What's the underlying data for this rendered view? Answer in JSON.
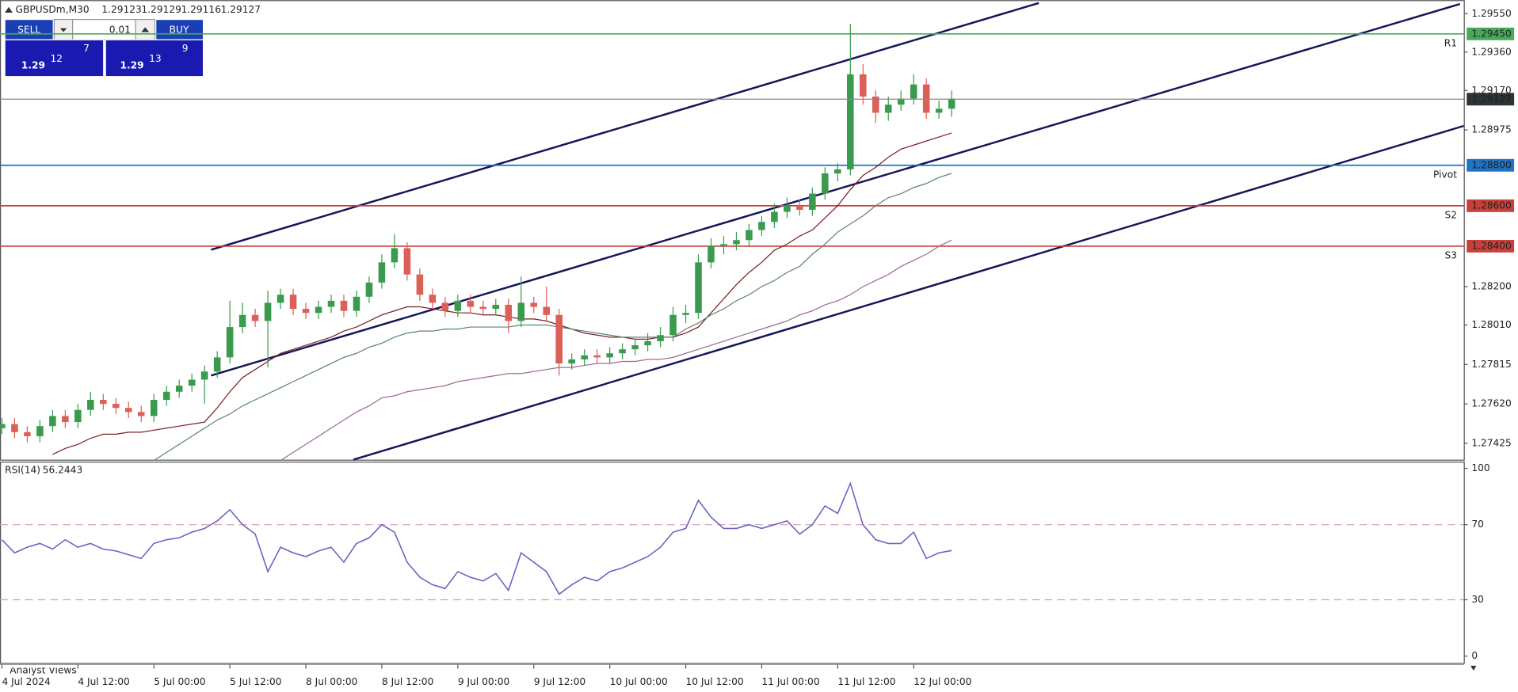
{
  "header": {
    "symbol": "GBPUSDm,M30",
    "prices": [
      "1.29123",
      "1.29129",
      "1.29116",
      "1.29127"
    ]
  },
  "trade_panel": {
    "sell": "SELL",
    "buy": "BUY",
    "lot": "0.01",
    "sell_price": {
      "big": "1.29",
      "main": "12",
      "pip": "7"
    },
    "buy_price": {
      "big": "1.29",
      "main": "13",
      "pip": "9"
    }
  },
  "footer_tab": "Analyst Views",
  "chart_data": [
    {
      "type": "candlestick",
      "up_color": "#3a9b4f",
      "down_color": "#dc5f58",
      "categories": [
        "4 Jul 2024",
        null,
        null,
        null,
        null,
        null,
        "4 Jul 12:00",
        null,
        null,
        null,
        null,
        null,
        "5 Jul 00:00",
        null,
        null,
        null,
        null,
        null,
        "5 Jul 12:00",
        null,
        null,
        null,
        null,
        null,
        "8 Jul 00:00",
        null,
        null,
        null,
        null,
        null,
        "8 Jul 12:00",
        null,
        null,
        null,
        null,
        null,
        "9 Jul 00:00",
        null,
        null,
        null,
        null,
        null,
        "9 Jul 12:00",
        null,
        null,
        null,
        null,
        null,
        "10 Jul 00:00",
        null,
        null,
        null,
        null,
        null,
        "10 Jul 12:00",
        null,
        null,
        null,
        null,
        null,
        "11 Jul 00:00",
        null,
        null,
        null,
        null,
        null,
        "11 Jul 12:00",
        null,
        null,
        null,
        null,
        null,
        "12 Jul 00:00",
        null,
        null,
        null
      ],
      "open": [
        1.275,
        1.2752,
        1.2748,
        1.2746,
        1.2751,
        1.2756,
        1.2753,
        1.2759,
        1.2764,
        1.2762,
        1.276,
        1.2758,
        1.2756,
        1.2764,
        1.2768,
        1.2771,
        1.2774,
        1.2778,
        1.2785,
        1.28,
        1.2806,
        1.2803,
        1.2812,
        1.2816,
        1.2809,
        1.2807,
        1.281,
        1.2813,
        1.2808,
        1.2815,
        1.2822,
        1.2832,
        1.2839,
        1.2826,
        1.2816,
        1.2812,
        1.2808,
        1.2813,
        1.281,
        1.2809,
        1.2811,
        1.2803,
        1.2812,
        1.281,
        1.2806,
        1.2782,
        1.2784,
        1.2786,
        1.2785,
        1.2787,
        1.2789,
        1.2791,
        1.2793,
        1.2796,
        1.2806,
        1.2807,
        1.2832,
        1.284,
        1.2841,
        1.2843,
        1.2848,
        1.2852,
        1.2857,
        1.286,
        1.2858,
        1.2866,
        1.2876,
        1.2878,
        1.2925,
        1.2914,
        1.2906,
        1.291,
        1.2913,
        1.292,
        1.2906,
        1.2908
      ],
      "high": [
        1.2755,
        1.2755,
        1.2751,
        1.2754,
        1.2759,
        1.2759,
        1.2762,
        1.2768,
        1.2767,
        1.2765,
        1.2763,
        1.2761,
        1.2767,
        1.2771,
        1.2774,
        1.2777,
        1.2781,
        1.2788,
        1.2813,
        1.2812,
        1.2809,
        1.2818,
        1.2819,
        1.2819,
        1.2812,
        1.2813,
        1.2816,
        1.2816,
        1.2818,
        1.2825,
        1.2836,
        1.2846,
        1.2842,
        1.2829,
        1.2819,
        1.2815,
        1.2816,
        1.2816,
        1.2813,
        1.2814,
        1.2814,
        1.2825,
        1.2815,
        1.282,
        1.2809,
        1.2787,
        1.2789,
        1.2789,
        1.279,
        1.2792,
        1.2794,
        1.2797,
        1.28,
        1.281,
        1.2811,
        1.2836,
        1.2844,
        1.2845,
        1.2847,
        1.2851,
        1.2855,
        1.2861,
        1.2864,
        1.2863,
        1.2869,
        1.2879,
        1.2881,
        1.295,
        1.293,
        1.2917,
        1.2914,
        1.2917,
        1.2925,
        1.2923,
        1.2912,
        1.2917
      ],
      "low": [
        1.2747,
        1.2745,
        1.2743,
        1.2743,
        1.2748,
        1.275,
        1.275,
        1.2756,
        1.2759,
        1.2757,
        1.2755,
        1.2753,
        1.2753,
        1.2761,
        1.2765,
        1.2768,
        1.2762,
        1.2775,
        1.2782,
        1.2797,
        1.28,
        1.278,
        1.2809,
        1.2806,
        1.2804,
        1.2804,
        1.2807,
        1.2805,
        1.2805,
        1.2812,
        1.2819,
        1.2829,
        1.2823,
        1.2813,
        1.2809,
        1.2805,
        1.2805,
        1.2807,
        1.2806,
        1.2806,
        1.2797,
        1.28,
        1.2807,
        1.2803,
        1.2776,
        1.2779,
        1.2781,
        1.2782,
        1.2782,
        1.2784,
        1.2786,
        1.2788,
        1.279,
        1.2793,
        1.2802,
        1.2804,
        1.2829,
        1.2836,
        1.2838,
        1.284,
        1.2845,
        1.2849,
        1.2854,
        1.2855,
        1.2855,
        1.2863,
        1.2872,
        1.2875,
        1.291,
        1.2901,
        1.2902,
        1.2907,
        1.291,
        1.2903,
        1.2903,
        1.2904
      ],
      "close": [
        1.2752,
        1.2748,
        1.2746,
        1.2751,
        1.2756,
        1.2753,
        1.2759,
        1.2764,
        1.2762,
        1.276,
        1.2758,
        1.2756,
        1.2764,
        1.2768,
        1.2771,
        1.2774,
        1.2778,
        1.2785,
        1.28,
        1.2806,
        1.2803,
        1.2812,
        1.2816,
        1.2809,
        1.2807,
        1.281,
        1.2813,
        1.2808,
        1.2815,
        1.2822,
        1.2832,
        1.2839,
        1.2826,
        1.2816,
        1.2812,
        1.2808,
        1.2813,
        1.281,
        1.2809,
        1.2811,
        1.2803,
        1.2812,
        1.281,
        1.2806,
        1.2782,
        1.2784,
        1.2786,
        1.2785,
        1.2787,
        1.2789,
        1.2791,
        1.2793,
        1.2796,
        1.2806,
        1.2807,
        1.2832,
        1.284,
        1.2841,
        1.2843,
        1.2848,
        1.2852,
        1.2857,
        1.286,
        1.2858,
        1.2866,
        1.2876,
        1.2878,
        1.2925,
        1.2914,
        1.2906,
        1.291,
        1.2913,
        1.292,
        1.2906,
        1.2908,
        1.2913
      ],
      "overlays": [
        {
          "color": "#7a1f24",
          "values": [
            null,
            null,
            null,
            null,
            1.2737,
            1.274,
            1.2742,
            1.2745,
            1.2747,
            1.2747,
            1.2748,
            1.2748,
            1.2749,
            1.275,
            1.2751,
            1.2752,
            1.2753,
            1.276,
            1.2768,
            1.2775,
            1.2779,
            1.2783,
            1.2787,
            1.2789,
            1.2791,
            1.2793,
            1.2795,
            1.2798,
            1.28,
            1.2803,
            1.2806,
            1.2808,
            1.281,
            1.281,
            1.2809,
            1.2808,
            1.2807,
            1.2807,
            1.2806,
            1.2806,
            1.2805,
            1.2804,
            1.2804,
            1.2803,
            1.2801,
            1.2799,
            1.2797,
            1.2796,
            1.2795,
            1.2795,
            1.2794,
            1.2794,
            1.2795,
            1.2795,
            1.2797,
            1.28,
            1.2807,
            1.2814,
            1.2821,
            1.2827,
            1.2832,
            1.2838,
            1.2841,
            1.2845,
            1.2848,
            1.2854,
            1.286,
            1.2868,
            1.2875,
            1.2879,
            1.2884,
            1.2888,
            1.289,
            1.2892,
            1.2894,
            1.2896
          ]
        },
        {
          "color": "#5d8370",
          "values": [
            null,
            null,
            null,
            null,
            null,
            null,
            null,
            null,
            null,
            null,
            null,
            null,
            1.2734,
            1.2738,
            1.2742,
            1.2746,
            1.275,
            1.2754,
            1.2757,
            1.2761,
            1.2764,
            1.2767,
            1.277,
            1.2773,
            1.2776,
            1.2779,
            1.2782,
            1.2785,
            1.2787,
            1.279,
            1.2792,
            1.2795,
            1.2797,
            1.2798,
            1.2798,
            1.2799,
            1.2799,
            1.28,
            1.28,
            1.28,
            1.28,
            1.2801,
            1.2801,
            1.2801,
            1.28,
            1.2799,
            1.2798,
            1.2797,
            1.2796,
            1.2795,
            1.2795,
            1.2795,
            1.2795,
            1.2795,
            1.2799,
            1.2802,
            1.2806,
            1.2809,
            1.2813,
            1.2816,
            1.282,
            1.2823,
            1.2827,
            1.283,
            1.2836,
            1.2841,
            1.2847,
            1.2851,
            1.2855,
            1.286,
            1.2864,
            1.2866,
            1.2869,
            1.2871,
            1.2874,
            1.2876
          ]
        },
        {
          "color": "#9a6a9a",
          "values": [
            null,
            null,
            null,
            null,
            null,
            null,
            null,
            null,
            null,
            null,
            null,
            null,
            null,
            null,
            null,
            null,
            null,
            null,
            null,
            null,
            null,
            null,
            1.2734,
            1.2738,
            1.2742,
            1.2746,
            1.275,
            1.2754,
            1.2758,
            1.2761,
            1.2765,
            1.2766,
            1.2768,
            1.2769,
            1.277,
            1.2771,
            1.2773,
            1.2774,
            1.2775,
            1.2776,
            1.2777,
            1.2777,
            1.2778,
            1.2779,
            1.278,
            1.278,
            1.2781,
            1.2782,
            1.2782,
            1.2783,
            1.2783,
            1.2784,
            1.2784,
            1.2785,
            1.2787,
            1.2789,
            1.2791,
            1.2793,
            1.2795,
            1.2797,
            1.2799,
            1.2801,
            1.2803,
            1.2806,
            1.2808,
            1.2811,
            1.2813,
            1.2816,
            1.282,
            1.2823,
            1.2826,
            1.283,
            1.2833,
            1.2836,
            1.284,
            1.2843
          ]
        }
      ],
      "ylim": [
        1.27344,
        1.29617
      ],
      "yticks": [
        {
          "value": 1.2955,
          "label": "1.29550"
        },
        {
          "value": 1.2936,
          "label": "1.29360"
        },
        {
          "value": 1.2917,
          "label": "1.29170"
        },
        1.28975,
        {
          "value": 1.282,
          "label": "1.28200"
        },
        {
          "value": 1.2801,
          "label": "1.28010"
        },
        1.27815,
        {
          "value": 1.2762,
          "label": "1.27620"
        },
        1.27425
      ],
      "levels": [
        {
          "value": 1.2945,
          "label": "1.29450",
          "tag": "R1",
          "color": "#49a95a"
        },
        {
          "value": 1.288,
          "label": "1.28800",
          "tag": "Pivot",
          "color": "#1f73c4"
        },
        {
          "value": 1.286,
          "label": "1.28600",
          "tag": "S2",
          "color": "#c9403a"
        },
        {
          "value": 1.284,
          "label": "1.28400",
          "tag": "S3",
          "color": "#c9403a"
        }
      ],
      "last_price": {
        "value": 1.29127,
        "label": "1.29127"
      }
    },
    {
      "type": "line",
      "title": "RSI(14)",
      "color": "#6f62c4",
      "values": [
        62,
        55,
        58,
        60,
        57,
        62,
        58,
        60,
        57,
        56,
        54,
        52,
        60,
        62,
        63,
        66,
        68,
        72,
        78,
        70,
        65,
        45,
        58,
        55,
        53,
        56,
        58,
        50,
        60,
        63,
        70,
        66,
        50,
        42,
        38,
        36,
        45,
        42,
        40,
        44,
        35,
        55,
        50,
        45,
        33,
        38,
        42,
        40,
        45,
        47,
        50,
        53,
        58,
        66,
        68,
        83,
        74,
        68,
        68,
        70,
        68,
        70,
        72,
        65,
        70,
        80,
        76,
        92,
        70,
        62,
        60,
        60,
        66,
        52,
        55,
        56.2443
      ],
      "ylim": [
        -3.6,
        103.6
      ],
      "yticks": [
        0,
        30,
        70,
        100
      ],
      "dashed_levels": [
        30,
        70
      ]
    }
  ]
}
